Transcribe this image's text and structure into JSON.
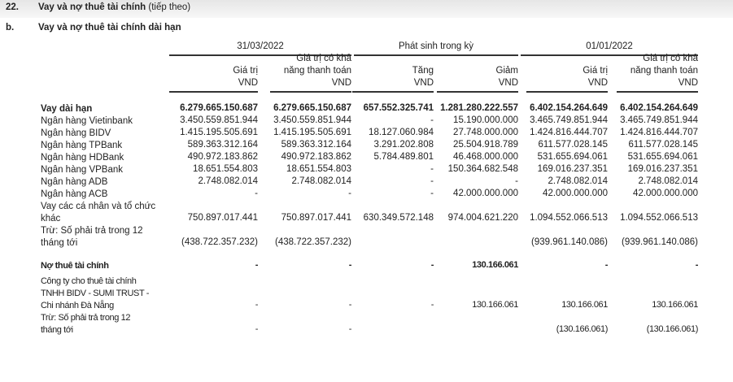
{
  "heading": {
    "number": "22.",
    "title": "Vay và nợ thuê tài chính",
    "suffix": "(tiếp theo)"
  },
  "subheading": {
    "letter": "b.",
    "title": "Vay và nợ thuê tài chính dài hạn"
  },
  "groups": [
    "31/03/2022",
    "Phát sinh trong kỳ",
    "01/01/2022"
  ],
  "columns": [
    {
      "lines": [
        "",
        "Giá trị",
        "VND"
      ]
    },
    {
      "lines": [
        "Giá trị có khả",
        "năng thanh toán",
        "VND"
      ]
    },
    {
      "lines": [
        "",
        "Tăng",
        "VND"
      ]
    },
    {
      "lines": [
        "",
        "Giảm",
        "VND"
      ]
    },
    {
      "lines": [
        "",
        "Giá trị",
        "VND"
      ]
    },
    {
      "lines": [
        "Giá trị có khả",
        "năng thanh toán",
        "VND"
      ]
    }
  ],
  "rows": [
    {
      "label": [
        "Vay dài hạn"
      ],
      "bold": true,
      "values": [
        "6.279.665.150.687",
        "6.279.665.150.687",
        "657.552.325.741",
        "1.281.280.222.557",
        "6.402.154.264.649",
        "6.402.154.264.649"
      ]
    },
    {
      "label": [
        "Ngân hàng Vietinbank"
      ],
      "values": [
        "3.450.559.851.944",
        "3.450.559.851.944",
        "-",
        "15.190.000.000",
        "3.465.749.851.944",
        "3.465.749.851.944"
      ]
    },
    {
      "label": [
        "Ngân hàng BIDV"
      ],
      "values": [
        "1.415.195.505.691",
        "1.415.195.505.691",
        "18.127.060.984",
        "27.748.000.000",
        "1.424.816.444.707",
        "1.424.816.444.707"
      ]
    },
    {
      "label": [
        "Ngân hàng TPBank"
      ],
      "values": [
        "589.363.312.164",
        "589.363.312.164",
        "3.291.202.808",
        "25.504.918.789",
        "611.577.028.145",
        "611.577.028.145"
      ]
    },
    {
      "label": [
        "Ngân hàng HDBank"
      ],
      "values": [
        "490.972.183.862",
        "490.972.183.862",
        "5.784.489.801",
        "46.468.000.000",
        "531.655.694.061",
        "531.655.694.061"
      ]
    },
    {
      "label": [
        "Ngân hàng VPBank"
      ],
      "values": [
        "18.651.554.803",
        "18.651.554.803",
        "-",
        "150.364.682.548",
        "169.016.237.351",
        "169.016.237.351"
      ]
    },
    {
      "label": [
        "Ngân hàng ADB"
      ],
      "values": [
        "2.748.082.014",
        "2.748.082.014",
        "-",
        "-",
        "2.748.082.014",
        "2.748.082.014"
      ]
    },
    {
      "label": [
        "Ngân hàng ACB"
      ],
      "values": [
        "-",
        "-",
        "-",
        "42.000.000.000",
        "42.000.000.000",
        "42.000.000.000"
      ]
    },
    {
      "label": [
        "Vay các cá nhân và tổ chức",
        "khác"
      ],
      "values": [
        "750.897.017.441",
        "750.897.017.441",
        "630.349.572.148",
        "974.004.621.220",
        "1.094.552.066.513",
        "1.094.552.066.513"
      ]
    },
    {
      "label": [
        "Trừ: Số phải trả trong 12",
        "tháng tới"
      ],
      "values": [
        "(438.722.357.232)",
        "(438.722.357.232)",
        "",
        "",
        "(939.961.140.086)",
        "(939.961.140.086)"
      ]
    },
    {
      "label": [
        "Nợ thuê tài chính"
      ],
      "bold": true,
      "cond": true,
      "values": [
        "-",
        "-",
        "-",
        "130.166.061",
        "-",
        "-"
      ]
    },
    {
      "label": [
        "Công ty cho thuê tài chính",
        "TNHH BIDV - SUMI TRUST -",
        "Chi nhánh Đà Nẵng"
      ],
      "cond": true,
      "values": [
        "-",
        "-",
        "-",
        "130.166.061",
        "130.166.061",
        "130.166.061"
      ]
    },
    {
      "label": [
        "Trừ: Số phải trả trong 12",
        "tháng tới"
      ],
      "cond": true,
      "values": [
        "-",
        "-",
        "",
        "",
        "(130.166.061)",
        "(130.166.061)"
      ]
    }
  ]
}
